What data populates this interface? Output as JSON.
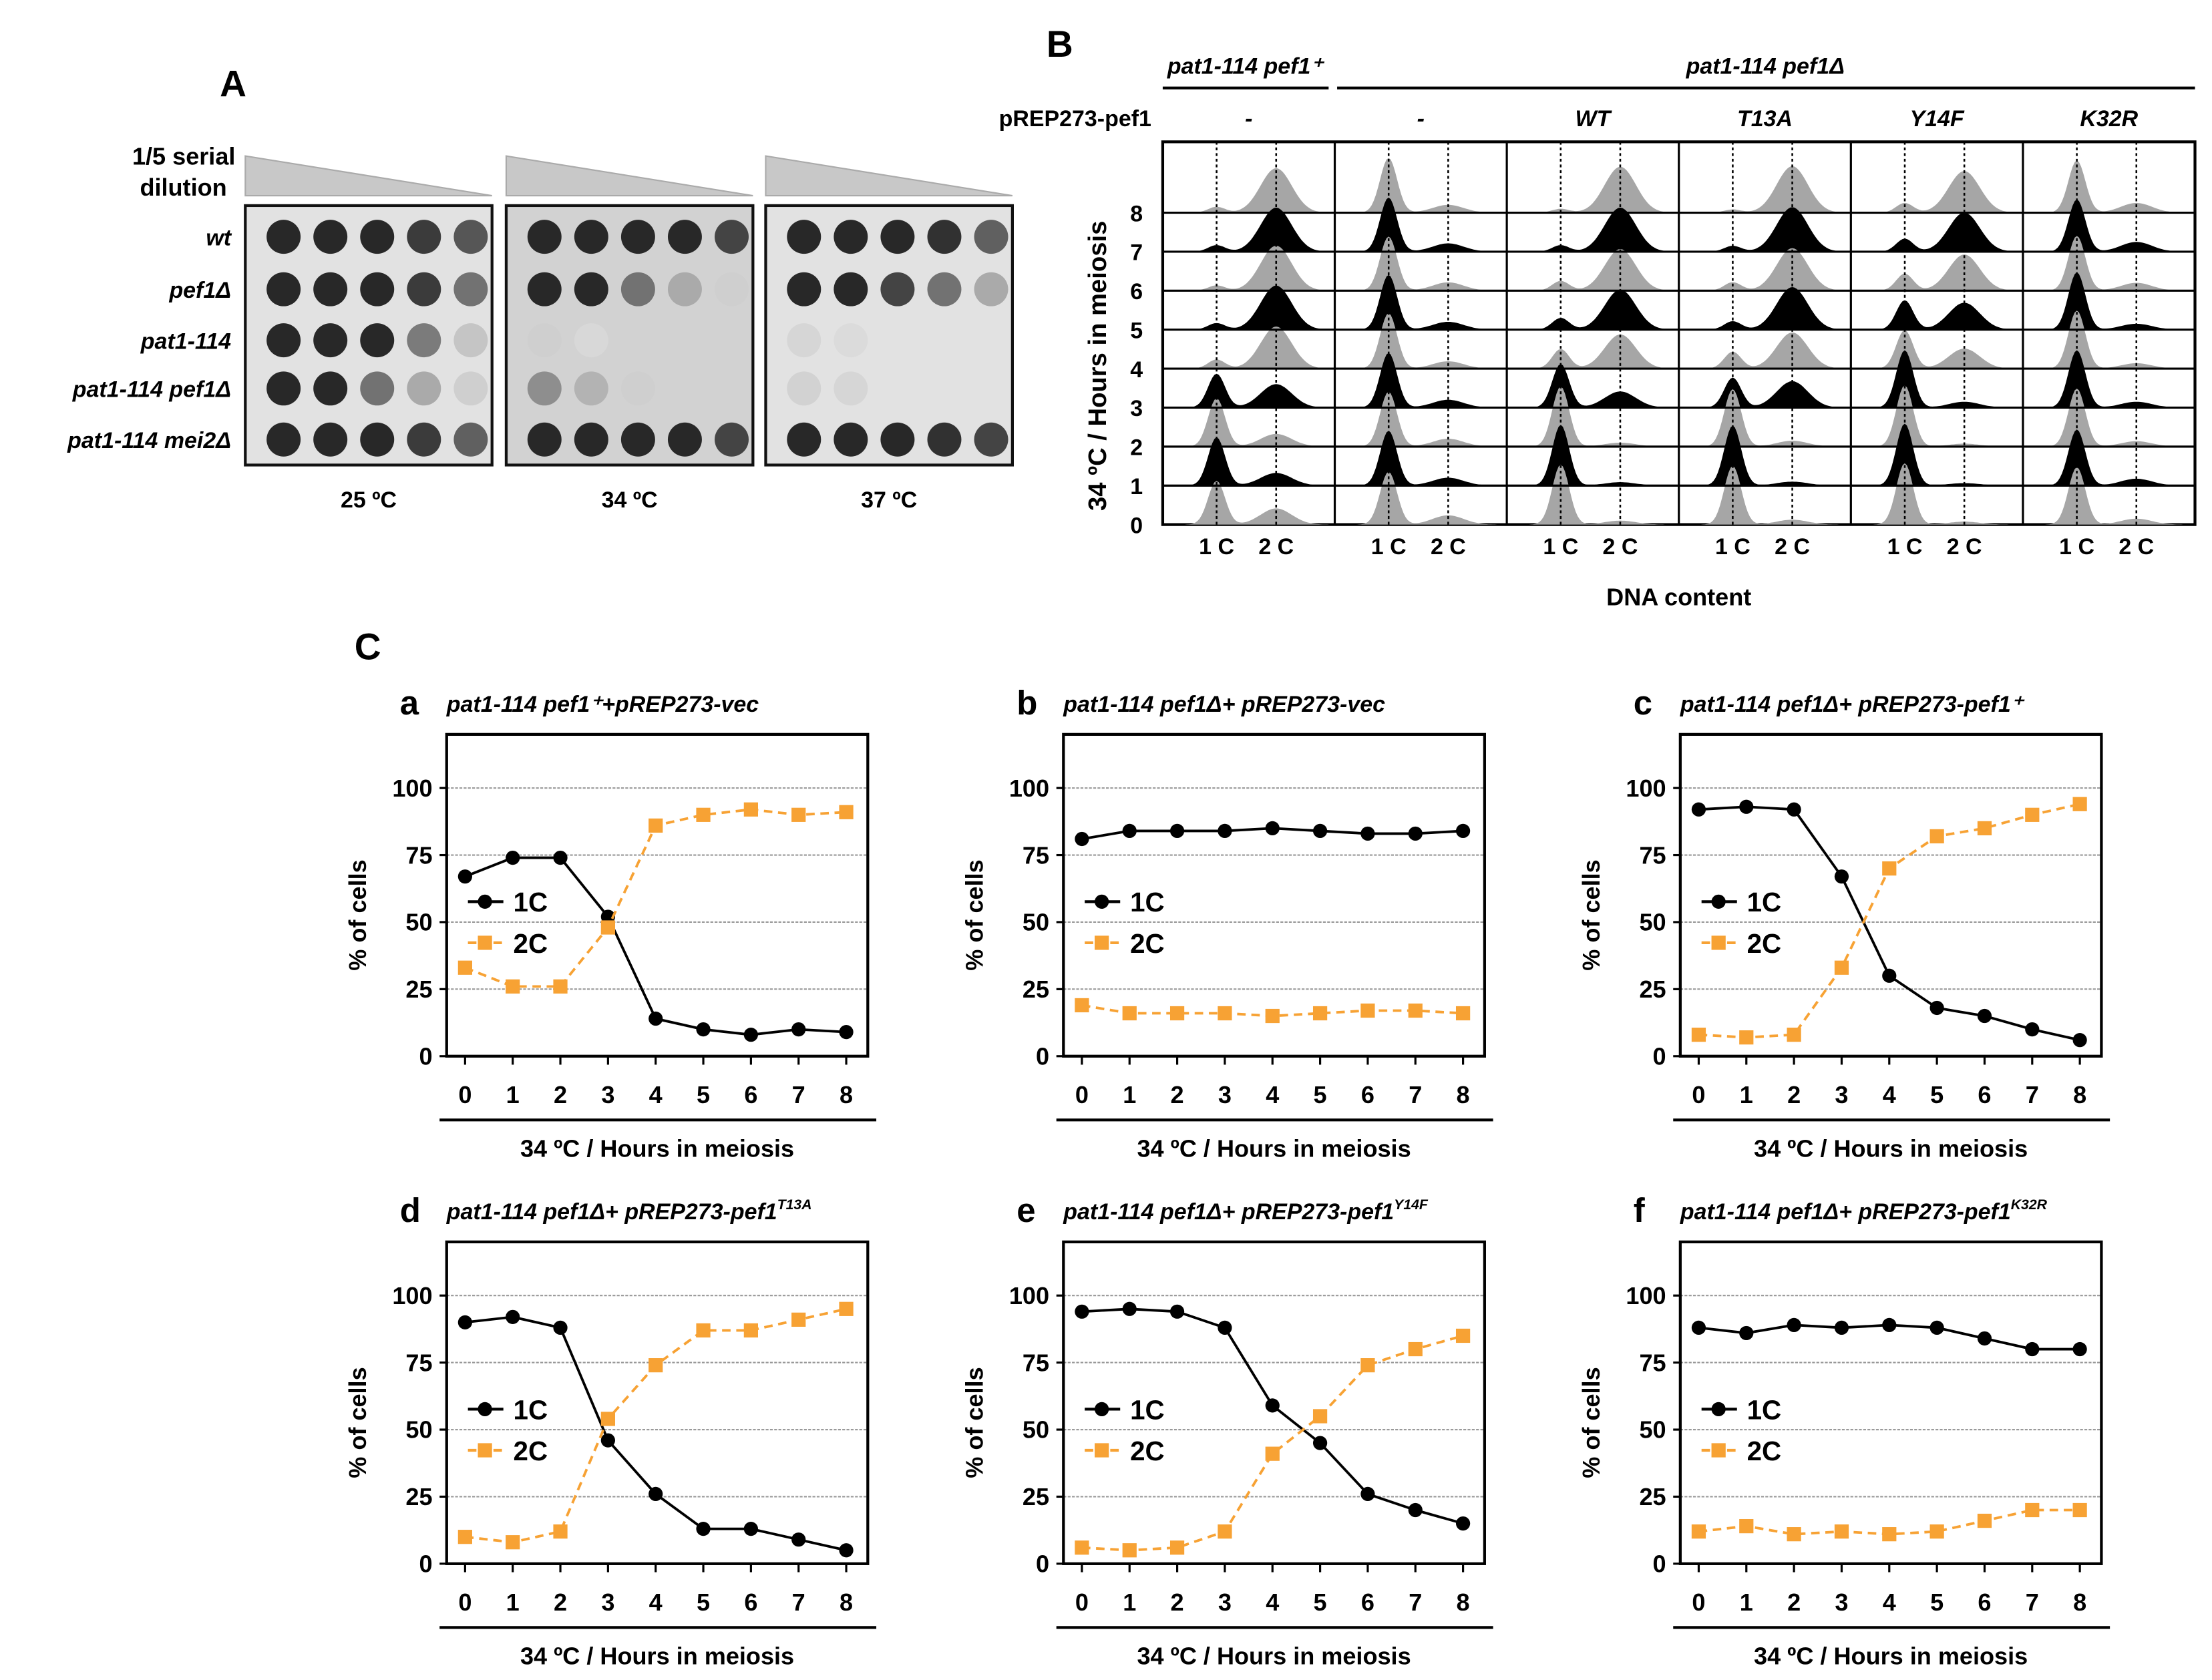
{
  "panelA": {
    "label": "A",
    "dilution_line1": "1/5 serial",
    "dilution_line2": "dilution",
    "strains": [
      "wt",
      "pef1Δ",
      "pat1-114",
      "pat1-114 pef1Δ",
      "pat1-114 mei2Δ"
    ],
    "temperatures": [
      "25 ºC",
      "34 ºC",
      "37 ºC"
    ],
    "growth": [
      [
        [
          1,
          1,
          1,
          0.9,
          0.75
        ],
        [
          1,
          1,
          1,
          0.9,
          0.6
        ],
        [
          1,
          1,
          1,
          0.55,
          0.15
        ],
        [
          1,
          1,
          0.6,
          0.3,
          0.1
        ],
        [
          1,
          1,
          1,
          0.9,
          0.7
        ]
      ],
      [
        [
          1,
          1,
          1,
          1,
          0.85
        ],
        [
          1,
          1,
          0.6,
          0.3,
          0.1
        ],
        [
          0.1,
          0.05,
          0,
          0,
          0
        ],
        [
          0.45,
          0.25,
          0.1,
          0,
          0
        ],
        [
          1,
          1,
          1,
          1,
          0.85
        ]
      ],
      [
        [
          1,
          1,
          1,
          0.95,
          0.7
        ],
        [
          1,
          1,
          0.85,
          0.6,
          0.3
        ],
        [
          0.06,
          0.03,
          0,
          0,
          0
        ],
        [
          0.08,
          0.06,
          0,
          0,
          0
        ],
        [
          1,
          1,
          1,
          0.95,
          0.85
        ]
      ]
    ]
  },
  "panelB": {
    "label": "B",
    "group1": "pat1-114 pef1⁺",
    "group2": "pat1-114 pef1Δ",
    "row_label": "pREP273-pef1",
    "columns": [
      "-",
      "-",
      "WT",
      "T13A",
      "Y14F",
      "K32R"
    ],
    "hours": [
      "0",
      "1",
      "2",
      "3",
      "4",
      "5",
      "6",
      "7",
      "8"
    ],
    "ylabel": "34 ºC / Hours in meiosis",
    "xticks": [
      "1 C",
      "2 C"
    ],
    "xlabel": "DNA content",
    "even_hour_color": "#a6a6a6",
    "odd_hour_color": "#000000"
  },
  "panelC": {
    "label": "C"
  },
  "chart_data": [
    {
      "type": "line",
      "letter": "a",
      "title": "pat1-114 pef1⁺+pREP273-vec",
      "title_sup": "",
      "xlabel": "34 ºC / Hours in meiosis",
      "ylabel": "% of cells",
      "x": [
        0,
        1,
        2,
        3,
        4,
        5,
        6,
        7,
        8
      ],
      "ylim": [
        0,
        120
      ],
      "yticks": [
        0,
        25,
        50,
        75,
        100
      ],
      "grid": true,
      "legend": "center-left",
      "series": [
        {
          "name": "1C",
          "color": "#000000",
          "marker": "circle",
          "dash": false,
          "values": [
            67,
            74,
            74,
            52,
            14,
            10,
            8,
            10,
            9
          ]
        },
        {
          "name": "2C",
          "color": "#f7a234",
          "marker": "square",
          "dash": true,
          "values": [
            33,
            26,
            26,
            48,
            86,
            90,
            92,
            90,
            91
          ]
        }
      ]
    },
    {
      "type": "line",
      "letter": "b",
      "title": "pat1-114 pef1Δ+ pREP273-vec",
      "title_sup": "",
      "xlabel": "34 ºC / Hours in meiosis",
      "ylabel": "% of cells",
      "x": [
        0,
        1,
        2,
        3,
        4,
        5,
        6,
        7,
        8
      ],
      "ylim": [
        0,
        120
      ],
      "yticks": [
        0,
        25,
        50,
        75,
        100
      ],
      "grid": true,
      "legend": "center-left",
      "series": [
        {
          "name": "1C",
          "color": "#000000",
          "marker": "circle",
          "dash": false,
          "values": [
            81,
            84,
            84,
            84,
            85,
            84,
            83,
            83,
            84
          ]
        },
        {
          "name": "2C",
          "color": "#f7a234",
          "marker": "square",
          "dash": true,
          "values": [
            19,
            16,
            16,
            16,
            15,
            16,
            17,
            17,
            16
          ]
        }
      ]
    },
    {
      "type": "line",
      "letter": "c",
      "title": "pat1-114 pef1Δ+ pREP273-pef1⁺",
      "title_sup": "",
      "xlabel": "34 ºC / Hours in meiosis",
      "ylabel": "% of cells",
      "x": [
        0,
        1,
        2,
        3,
        4,
        5,
        6,
        7,
        8
      ],
      "ylim": [
        0,
        120
      ],
      "yticks": [
        0,
        25,
        50,
        75,
        100
      ],
      "grid": true,
      "legend": "center-left",
      "series": [
        {
          "name": "1C",
          "color": "#000000",
          "marker": "circle",
          "dash": false,
          "values": [
            92,
            93,
            92,
            67,
            30,
            18,
            15,
            10,
            6
          ]
        },
        {
          "name": "2C",
          "color": "#f7a234",
          "marker": "square",
          "dash": true,
          "values": [
            8,
            7,
            8,
            33,
            70,
            82,
            85,
            90,
            94
          ]
        }
      ]
    },
    {
      "type": "line",
      "letter": "d",
      "title": "pat1-114 pef1Δ+ pREP273-pef1",
      "title_sup": "T13A",
      "xlabel": "34 ºC / Hours in meiosis",
      "ylabel": "% of cells",
      "x": [
        0,
        1,
        2,
        3,
        4,
        5,
        6,
        7,
        8
      ],
      "ylim": [
        0,
        120
      ],
      "yticks": [
        0,
        25,
        50,
        75,
        100
      ],
      "grid": true,
      "legend": "center-left",
      "series": [
        {
          "name": "1C",
          "color": "#000000",
          "marker": "circle",
          "dash": false,
          "values": [
            90,
            92,
            88,
            46,
            26,
            13,
            13,
            9,
            5
          ]
        },
        {
          "name": "2C",
          "color": "#f7a234",
          "marker": "square",
          "dash": true,
          "values": [
            10,
            8,
            12,
            54,
            74,
            87,
            87,
            91,
            95
          ]
        }
      ]
    },
    {
      "type": "line",
      "letter": "e",
      "title": "pat1-114 pef1Δ+ pREP273-pef1",
      "title_sup": "Y14F",
      "xlabel": "34 ºC / Hours in meiosis",
      "ylabel": "% of cells",
      "x": [
        0,
        1,
        2,
        3,
        4,
        5,
        6,
        7,
        8
      ],
      "ylim": [
        0,
        120
      ],
      "yticks": [
        0,
        25,
        50,
        75,
        100
      ],
      "grid": true,
      "legend": "center-left",
      "series": [
        {
          "name": "1C",
          "color": "#000000",
          "marker": "circle",
          "dash": false,
          "values": [
            94,
            95,
            94,
            88,
            59,
            45,
            26,
            20,
            15
          ]
        },
        {
          "name": "2C",
          "color": "#f7a234",
          "marker": "square",
          "dash": true,
          "values": [
            6,
            5,
            6,
            12,
            41,
            55,
            74,
            80,
            85
          ]
        }
      ]
    },
    {
      "type": "line",
      "letter": "f",
      "title": "pat1-114 pef1Δ+ pREP273-pef1",
      "title_sup": "K32R",
      "xlabel": "34 ºC / Hours in meiosis",
      "ylabel": "% of cells",
      "x": [
        0,
        1,
        2,
        3,
        4,
        5,
        6,
        7,
        8
      ],
      "ylim": [
        0,
        120
      ],
      "yticks": [
        0,
        25,
        50,
        75,
        100
      ],
      "grid": true,
      "legend": "center-left",
      "series": [
        {
          "name": "1C",
          "color": "#000000",
          "marker": "circle",
          "dash": false,
          "values": [
            88,
            86,
            89,
            88,
            89,
            88,
            84,
            80,
            80
          ]
        },
        {
          "name": "2C",
          "color": "#f7a234",
          "marker": "square",
          "dash": true,
          "values": [
            12,
            14,
            11,
            12,
            11,
            12,
            16,
            20,
            20
          ]
        }
      ]
    }
  ]
}
